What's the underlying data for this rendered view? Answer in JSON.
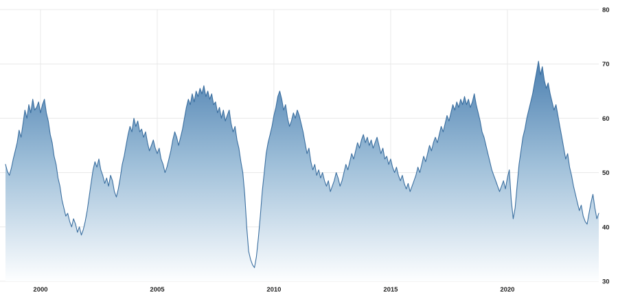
{
  "page": {
    "background": "#ffffff"
  },
  "chart_data": {
    "type": "area",
    "title": "",
    "xlabel": "",
    "ylabel": "",
    "legend": "none",
    "grid": true,
    "frequency": "monthly",
    "start": "1998-07",
    "ylim": [
      30,
      80
    ],
    "y_ticks": [
      30,
      40,
      50,
      60,
      70,
      80
    ],
    "x_ticks": [
      2000,
      2005,
      2010,
      2015,
      2020
    ],
    "colors": {
      "line": "#3a6e9f",
      "fill_top": "#4e81b1",
      "fill_mid": "#9dbed8",
      "fill_bottom": "#fdfeff",
      "grid": "#e8e8e8",
      "tick_text": "#222222",
      "background": "#ffffff"
    },
    "values": [
      51.5,
      50.2,
      49.5,
      50.8,
      52.5,
      54.0,
      55.5,
      57.8,
      56.5,
      59.0,
      61.5,
      60.0,
      62.5,
      61.0,
      63.5,
      61.5,
      62.0,
      63.0,
      61.0,
      62.5,
      63.5,
      61.0,
      59.5,
      57.0,
      55.5,
      53.0,
      51.5,
      49.0,
      47.5,
      45.0,
      43.5,
      42.0,
      42.5,
      41.0,
      40.0,
      41.5,
      40.5,
      39.0,
      40.0,
      38.5,
      39.5,
      41.0,
      43.0,
      45.5,
      48.0,
      50.5,
      52.0,
      51.0,
      52.5,
      50.5,
      49.5,
      48.0,
      49.0,
      47.5,
      49.5,
      48.5,
      46.5,
      45.5,
      47.0,
      49.0,
      51.5,
      53.0,
      55.0,
      57.0,
      58.5,
      57.5,
      60.0,
      58.5,
      59.5,
      57.5,
      58.0,
      56.5,
      57.5,
      55.5,
      54.0,
      55.0,
      56.0,
      54.5,
      53.5,
      54.5,
      52.5,
      51.5,
      50.0,
      51.0,
      52.5,
      54.0,
      56.0,
      57.5,
      56.5,
      55.0,
      56.5,
      58.0,
      60.0,
      62.0,
      63.5,
      62.5,
      64.5,
      63.0,
      65.0,
      64.0,
      65.5,
      64.5,
      66.0,
      64.0,
      65.0,
      63.5,
      64.5,
      62.5,
      63.0,
      61.0,
      62.0,
      60.0,
      61.5,
      59.5,
      60.5,
      61.5,
      59.0,
      57.5,
      58.5,
      56.0,
      54.5,
      52.0,
      50.0,
      46.0,
      40.0,
      35.5,
      34.0,
      33.0,
      32.5,
      34.5,
      38.0,
      42.0,
      46.5,
      50.0,
      53.5,
      55.5,
      57.0,
      58.5,
      60.5,
      62.0,
      64.0,
      65.0,
      63.5,
      61.5,
      62.5,
      60.0,
      58.5,
      59.5,
      61.0,
      60.0,
      61.5,
      60.5,
      59.0,
      57.5,
      55.5,
      53.5,
      54.5,
      52.0,
      50.5,
      51.5,
      49.5,
      50.5,
      49.0,
      50.0,
      48.5,
      47.5,
      48.5,
      46.5,
      47.5,
      48.5,
      50.0,
      49.0,
      47.5,
      48.5,
      50.0,
      51.5,
      50.5,
      52.0,
      53.5,
      52.5,
      54.0,
      55.5,
      54.5,
      56.0,
      57.0,
      55.5,
      56.5,
      55.0,
      56.0,
      54.5,
      55.5,
      56.5,
      55.0,
      53.5,
      54.5,
      52.5,
      53.0,
      51.5,
      52.5,
      51.0,
      50.0,
      51.0,
      49.5,
      48.5,
      49.5,
      48.0,
      47.0,
      48.0,
      46.5,
      47.5,
      48.5,
      49.5,
      51.0,
      50.0,
      51.5,
      53.0,
      52.0,
      53.5,
      55.0,
      54.0,
      55.5,
      56.5,
      55.5,
      57.0,
      58.5,
      57.5,
      59.0,
      60.5,
      59.5,
      61.0,
      62.5,
      61.5,
      63.0,
      62.0,
      63.5,
      62.5,
      64.0,
      62.5,
      63.5,
      62.0,
      63.0,
      64.5,
      62.5,
      61.0,
      59.5,
      57.5,
      56.5,
      55.0,
      53.5,
      52.0,
      50.5,
      49.5,
      48.5,
      47.5,
      46.5,
      47.5,
      48.5,
      47.0,
      49.0,
      50.5,
      45.0,
      41.5,
      43.5,
      47.5,
      51.5,
      54.0,
      56.5,
      58.0,
      60.0,
      61.5,
      63.0,
      64.5,
      66.5,
      68.5,
      70.5,
      68.0,
      69.5,
      67.0,
      65.5,
      66.5,
      64.5,
      63.0,
      61.5,
      62.5,
      60.5,
      58.5,
      56.5,
      54.5,
      52.5,
      53.5,
      51.0,
      49.5,
      47.5,
      46.0,
      44.5,
      43.0,
      44.0,
      42.0,
      41.0,
      40.5,
      42.5,
      44.5,
      46.0,
      43.5,
      41.5,
      42.5
    ]
  }
}
